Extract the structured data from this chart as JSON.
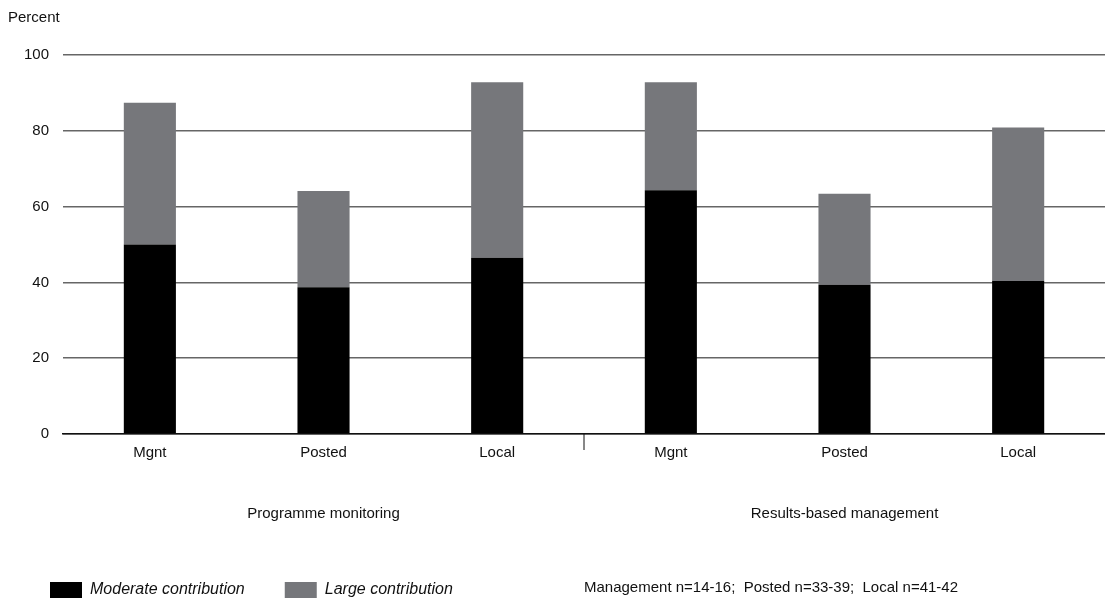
{
  "chart_data": {
    "type": "bar",
    "stacked": true,
    "ylabel": "Percent",
    "categories": [
      "Mgnt",
      "Posted",
      "Local",
      "Mgnt",
      "Posted",
      "Local"
    ],
    "series": [
      {
        "name": "Moderate contribution",
        "color": "#000000",
        "values": [
          50.0,
          38.7,
          46.5,
          64.3,
          39.4,
          40.4
        ]
      },
      {
        "name": "Large contribution",
        "color": "#76777b",
        "values": [
          37.4,
          25.4,
          46.3,
          28.5,
          24.0,
          40.5
        ]
      }
    ],
    "ylim": [
      0,
      100
    ],
    "yticks": [
      0,
      20,
      40,
      60,
      80,
      100
    ],
    "grid": "y",
    "legend": "bottom left",
    "annotations": [
      "Programme monitoring",
      "Results-based management",
      "Management n=14-16;  Posted n=33-39;  Local n=41-42"
    ]
  }
}
